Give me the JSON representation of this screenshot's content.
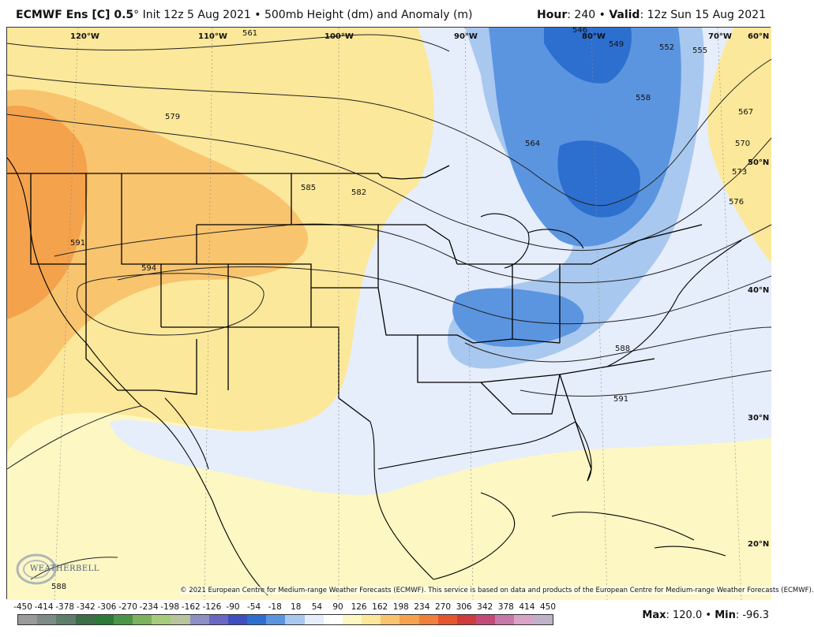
{
  "header": {
    "model": "ECMWF Ens [C] 0.5",
    "degree": "°",
    "init": "Init 12z 5 Aug 2021",
    "product": "500mb Height (dm) and Anomaly (m)",
    "bullet": "•",
    "hour_label": "Hour",
    "hour_value": ": 240",
    "valid_label": "Valid",
    "valid_value": ": 12z Sun 15 Aug 2021"
  },
  "map": {
    "longitudes": [
      "120°W",
      "110°W",
      "100°W",
      "90°W",
      "80°W",
      "70°W"
    ],
    "latitudes": [
      "60°N",
      "50°N",
      "40°N",
      "30°N",
      "20°N"
    ],
    "contour_labels": [
      "561",
      "579",
      "585",
      "582",
      "591",
      "594",
      "588",
      "591",
      "564",
      "558",
      "552",
      "555",
      "546",
      "549",
      "567",
      "570",
      "573",
      "576",
      "588"
    ],
    "trough_center": "upper Great Lakes / Ontario",
    "anomaly_colors": {
      "strong_negative": "#2d6fcf",
      "moderate_negative": "#5b95e0",
      "weak_negative": "#a9c8ef",
      "slight_negative": "#e6edfb",
      "slight_positive": "#fdf7c3",
      "weak_positive": "#fce89a",
      "moderate_positive": "#f9c46e",
      "strong_positive": "#f4a24c"
    }
  },
  "copyright": "© 2021 European Centre for Medium-range Weather Forecasts (ECMWF). This service is based on data and products of the European Centre for Medium-range Weather Forecasts (ECMWF).",
  "logo_text": "WEATHERBELL",
  "colorbar": {
    "ticks": [
      "-450",
      "-414",
      "-378",
      "-342",
      "-306",
      "-270",
      "-234",
      "-198",
      "-162",
      "-126",
      "-90",
      "-54",
      "-18",
      "18",
      "54",
      "90",
      "126",
      "162",
      "198",
      "234",
      "270",
      "306",
      "342",
      "378",
      "414",
      "450"
    ],
    "colors": [
      "#9a9a9a",
      "#7e8a86",
      "#5e7d6a",
      "#3c6e49",
      "#2b7a3a",
      "#4b9548",
      "#7bb25d",
      "#a6cc7a",
      "#b8c49c",
      "#8e8fc4",
      "#6a67c2",
      "#3f4fc0",
      "#2d6fcf",
      "#5b95e0",
      "#a9c8ef",
      "#e6edfb",
      "#ffffff",
      "#fdf7c3",
      "#fce89a",
      "#f9c46e",
      "#f4a24c",
      "#ef7f3a",
      "#e6552e",
      "#cf3a3a",
      "#c24a78",
      "#c877aa",
      "#d9a3c6",
      "#bdb2c8"
    ]
  },
  "stats": {
    "max_label": "Max",
    "max_value": ": 120.0",
    "sep": "•",
    "min_label": "Min",
    "min_value": ": -96.3"
  }
}
